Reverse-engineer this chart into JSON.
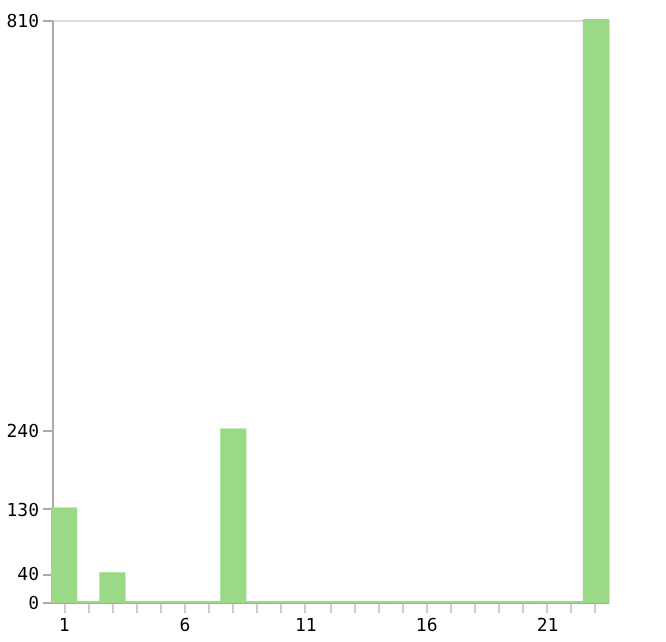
{
  "chart_data": {
    "type": "bar",
    "categories": [
      "1",
      null,
      null,
      null,
      null,
      "6",
      null,
      null,
      null,
      null,
      "11",
      null,
      null,
      null,
      null,
      "16",
      null,
      null,
      null,
      null,
      "21",
      null,
      null
    ],
    "values": [
      130,
      0,
      40,
      0,
      0,
      0,
      0,
      240,
      0,
      0,
      0,
      0,
      0,
      0,
      0,
      0,
      0,
      0,
      0,
      0,
      0,
      0,
      810
    ],
    "color": "#9ad985",
    "ylim": [
      0,
      810
    ],
    "yticks": [
      0,
      40,
      130,
      240,
      810
    ],
    "grid": false
  }
}
